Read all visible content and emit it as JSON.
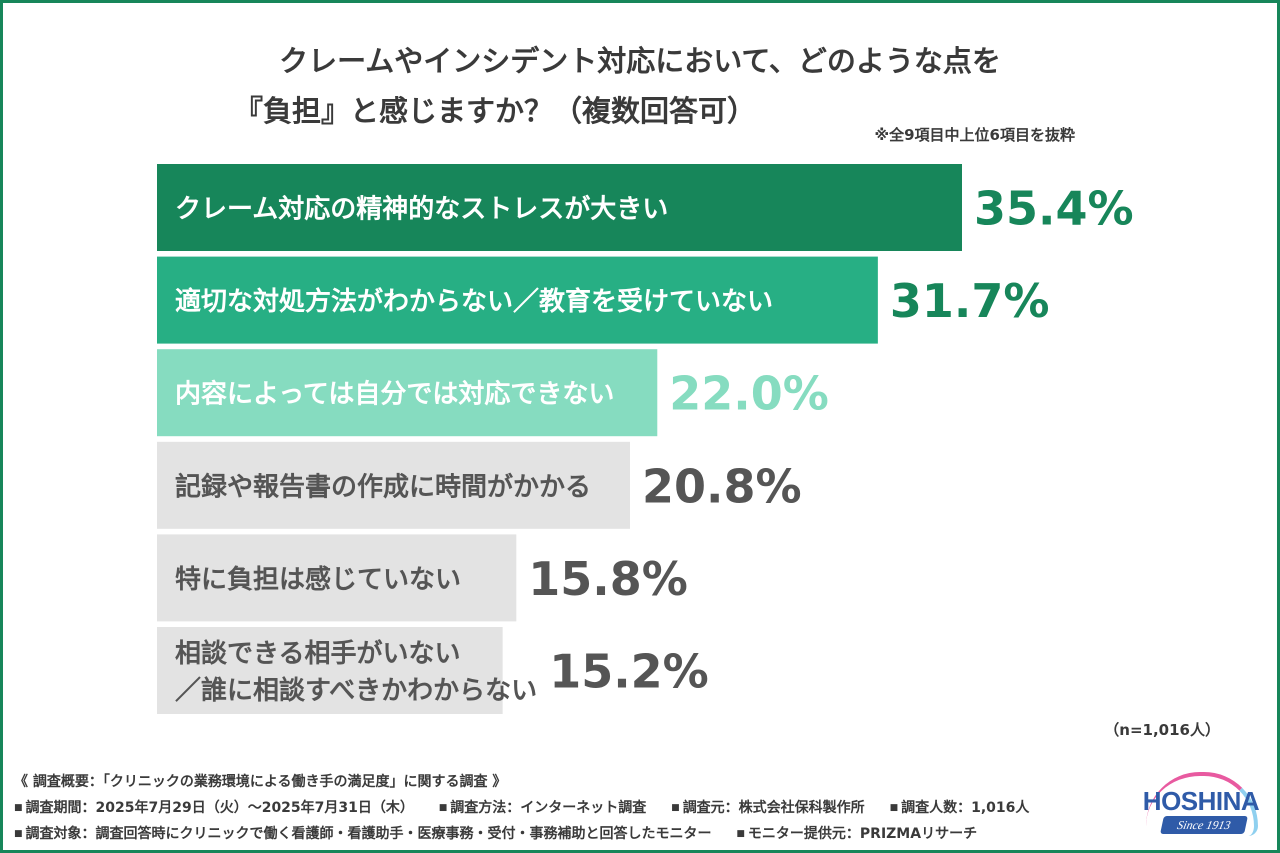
{
  "title": {
    "line1": "クレームやインシデント対応において、どのような点を",
    "line2": "『負担』と感じますか？（複数回答可）"
  },
  "note": "※全9項目中上位6項目を抜粋",
  "chart_data": {
    "type": "bar",
    "orientation": "horizontal",
    "categories": [
      [
        "クレーム対応の精神的なストレスが大きい"
      ],
      [
        "適切な対処方法がわからない／教育を受けていない"
      ],
      [
        "内容によっては自分では対応できない"
      ],
      [
        "記録や報告書の作成に時間がかかる"
      ],
      [
        "特に負担は感じていない"
      ],
      [
        "相談できる相手がいない",
        "／誰に相談すべきかわからない"
      ]
    ],
    "values": [
      35.4,
      31.7,
      22.0,
      20.8,
      15.8,
      15.2
    ],
    "value_labels": [
      "35.4%",
      "31.7%",
      "22.0%",
      "20.8%",
      "15.8%",
      "15.2%"
    ],
    "unit": "%",
    "xlim": [
      0,
      35.4
    ],
    "bar_colors": [
      "#17865a",
      "#27af84",
      "#86dcc0",
      "#e3e3e3",
      "#e3e3e3",
      "#e3e3e3"
    ],
    "label_colors": [
      "#ffffff",
      "#ffffff",
      "#ffffff",
      "#555555",
      "#555555",
      "#555555"
    ],
    "value_colors": [
      "#17865a",
      "#17865a",
      "#86dcc0",
      "#555555",
      "#555555",
      "#555555"
    ],
    "grid": false,
    "legend": "none"
  },
  "sample_size": "（n=1,016人）",
  "footer": {
    "overview": "《 調査概要：「クリニックの業務環境による働き手の満足度」に関する調査 》",
    "row1": [
      "調査期間：2025年7月29日（火）〜2025年7月31日（木）",
      "調査方法：インターネット調査",
      "調査元：株式会社保科製作所",
      "調査人数：1,016人"
    ],
    "row2": [
      "調査対象：調査回答時にクリニックで働く看護師・看護助手・医療事務・受付・事務補助と回答したモニター",
      "モニター提供元：PRIZMAリサーチ"
    ],
    "bullet": "■"
  },
  "logo": {
    "brand": "HOSHINA",
    "since": "Since 1913"
  },
  "colors": {
    "frame": "#17865a",
    "text": "#3a3a3a",
    "logo_blue": "#2f5ba8",
    "logo_pink": "#e85aa0"
  }
}
